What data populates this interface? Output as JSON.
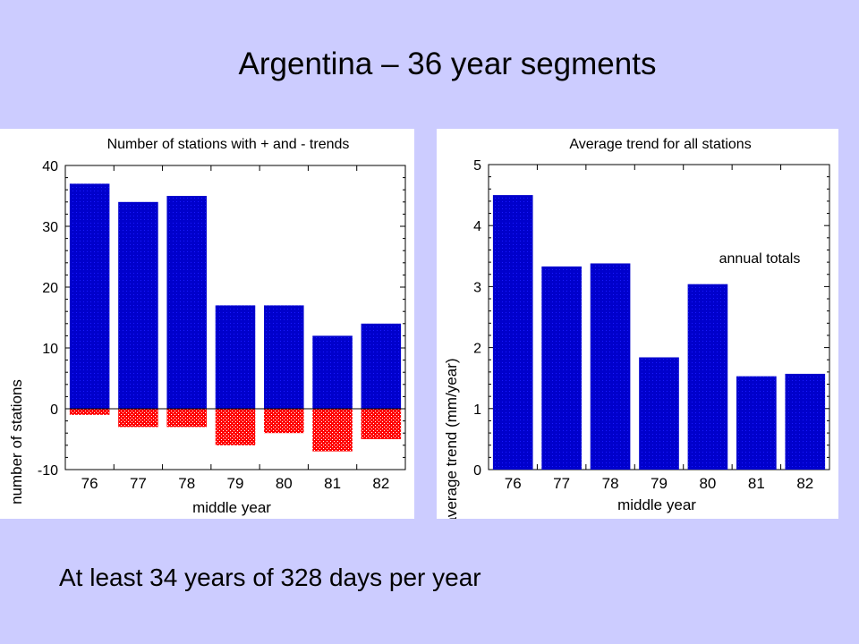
{
  "slide": {
    "title": "Argentina – 36 year segments",
    "footer": "At least 34 years of 328 days per year"
  },
  "colors": {
    "background": "#ccccff",
    "positive_bar": "#0000cc",
    "negative_bar": "#ff0000"
  },
  "chart_data": [
    {
      "type": "bar",
      "title": "Number of stations with + and - trends",
      "xlabel": "middle year",
      "ylabel": "number of stations",
      "categories": [
        "76",
        "77",
        "78",
        "79",
        "80",
        "81",
        "82"
      ],
      "series": [
        {
          "name": "+ trends",
          "values": [
            37,
            34,
            35,
            17,
            17,
            12,
            14
          ]
        },
        {
          "name": "- trends",
          "values": [
            -1,
            -3,
            -3,
            -6,
            -4,
            -7,
            -5
          ]
        }
      ],
      "ylim": [
        -10,
        40
      ],
      "yticks": [
        -10,
        0,
        10,
        20,
        30,
        40
      ],
      "zero_line": true
    },
    {
      "type": "bar",
      "title": "Average trend for all stations",
      "xlabel": "middle year",
      "ylabel": "average trend (mm/year)",
      "categories": [
        "76",
        "77",
        "78",
        "79",
        "80",
        "81",
        "82"
      ],
      "series": [
        {
          "name": "annual totals",
          "values": [
            4.5,
            3.33,
            3.38,
            1.84,
            3.04,
            1.53,
            1.57
          ]
        }
      ],
      "ylim": [
        0,
        5
      ],
      "yticks": [
        0,
        1,
        2,
        3,
        4,
        5
      ],
      "annotation": "annual totals"
    }
  ]
}
